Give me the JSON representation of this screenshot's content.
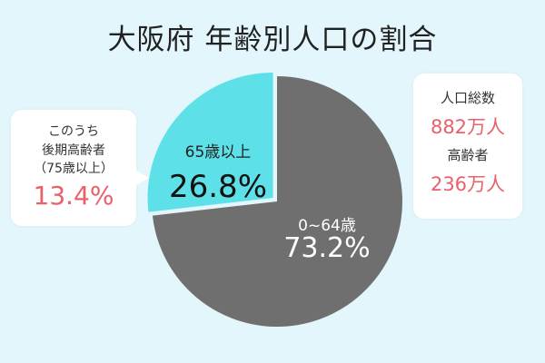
{
  "title": "大阪府 年齢別人口の割合",
  "colors": {
    "background": "#e2f6fb",
    "elderly": "#5ee0e8",
    "young": "#6f6f6f",
    "accent": "#e8606a"
  },
  "chart_data": {
    "type": "pie",
    "title": "大阪府 年齢別人口の割合",
    "slices": [
      {
        "label": "0~64歳",
        "value": 73.2,
        "display": "73.2%",
        "color": "#6f6f6f"
      },
      {
        "label": "65歳以上",
        "value": 26.8,
        "display": "26.8%",
        "color": "#5ee0e8"
      }
    ]
  },
  "callout_left": {
    "line1": "このうち",
    "line2": "後期高齢者",
    "line3": "（75歳以上）",
    "value": "13.4%"
  },
  "callout_right": {
    "label1": "人口総数",
    "value1": "882万人",
    "label2": "高齢者",
    "value2": "236万人"
  }
}
